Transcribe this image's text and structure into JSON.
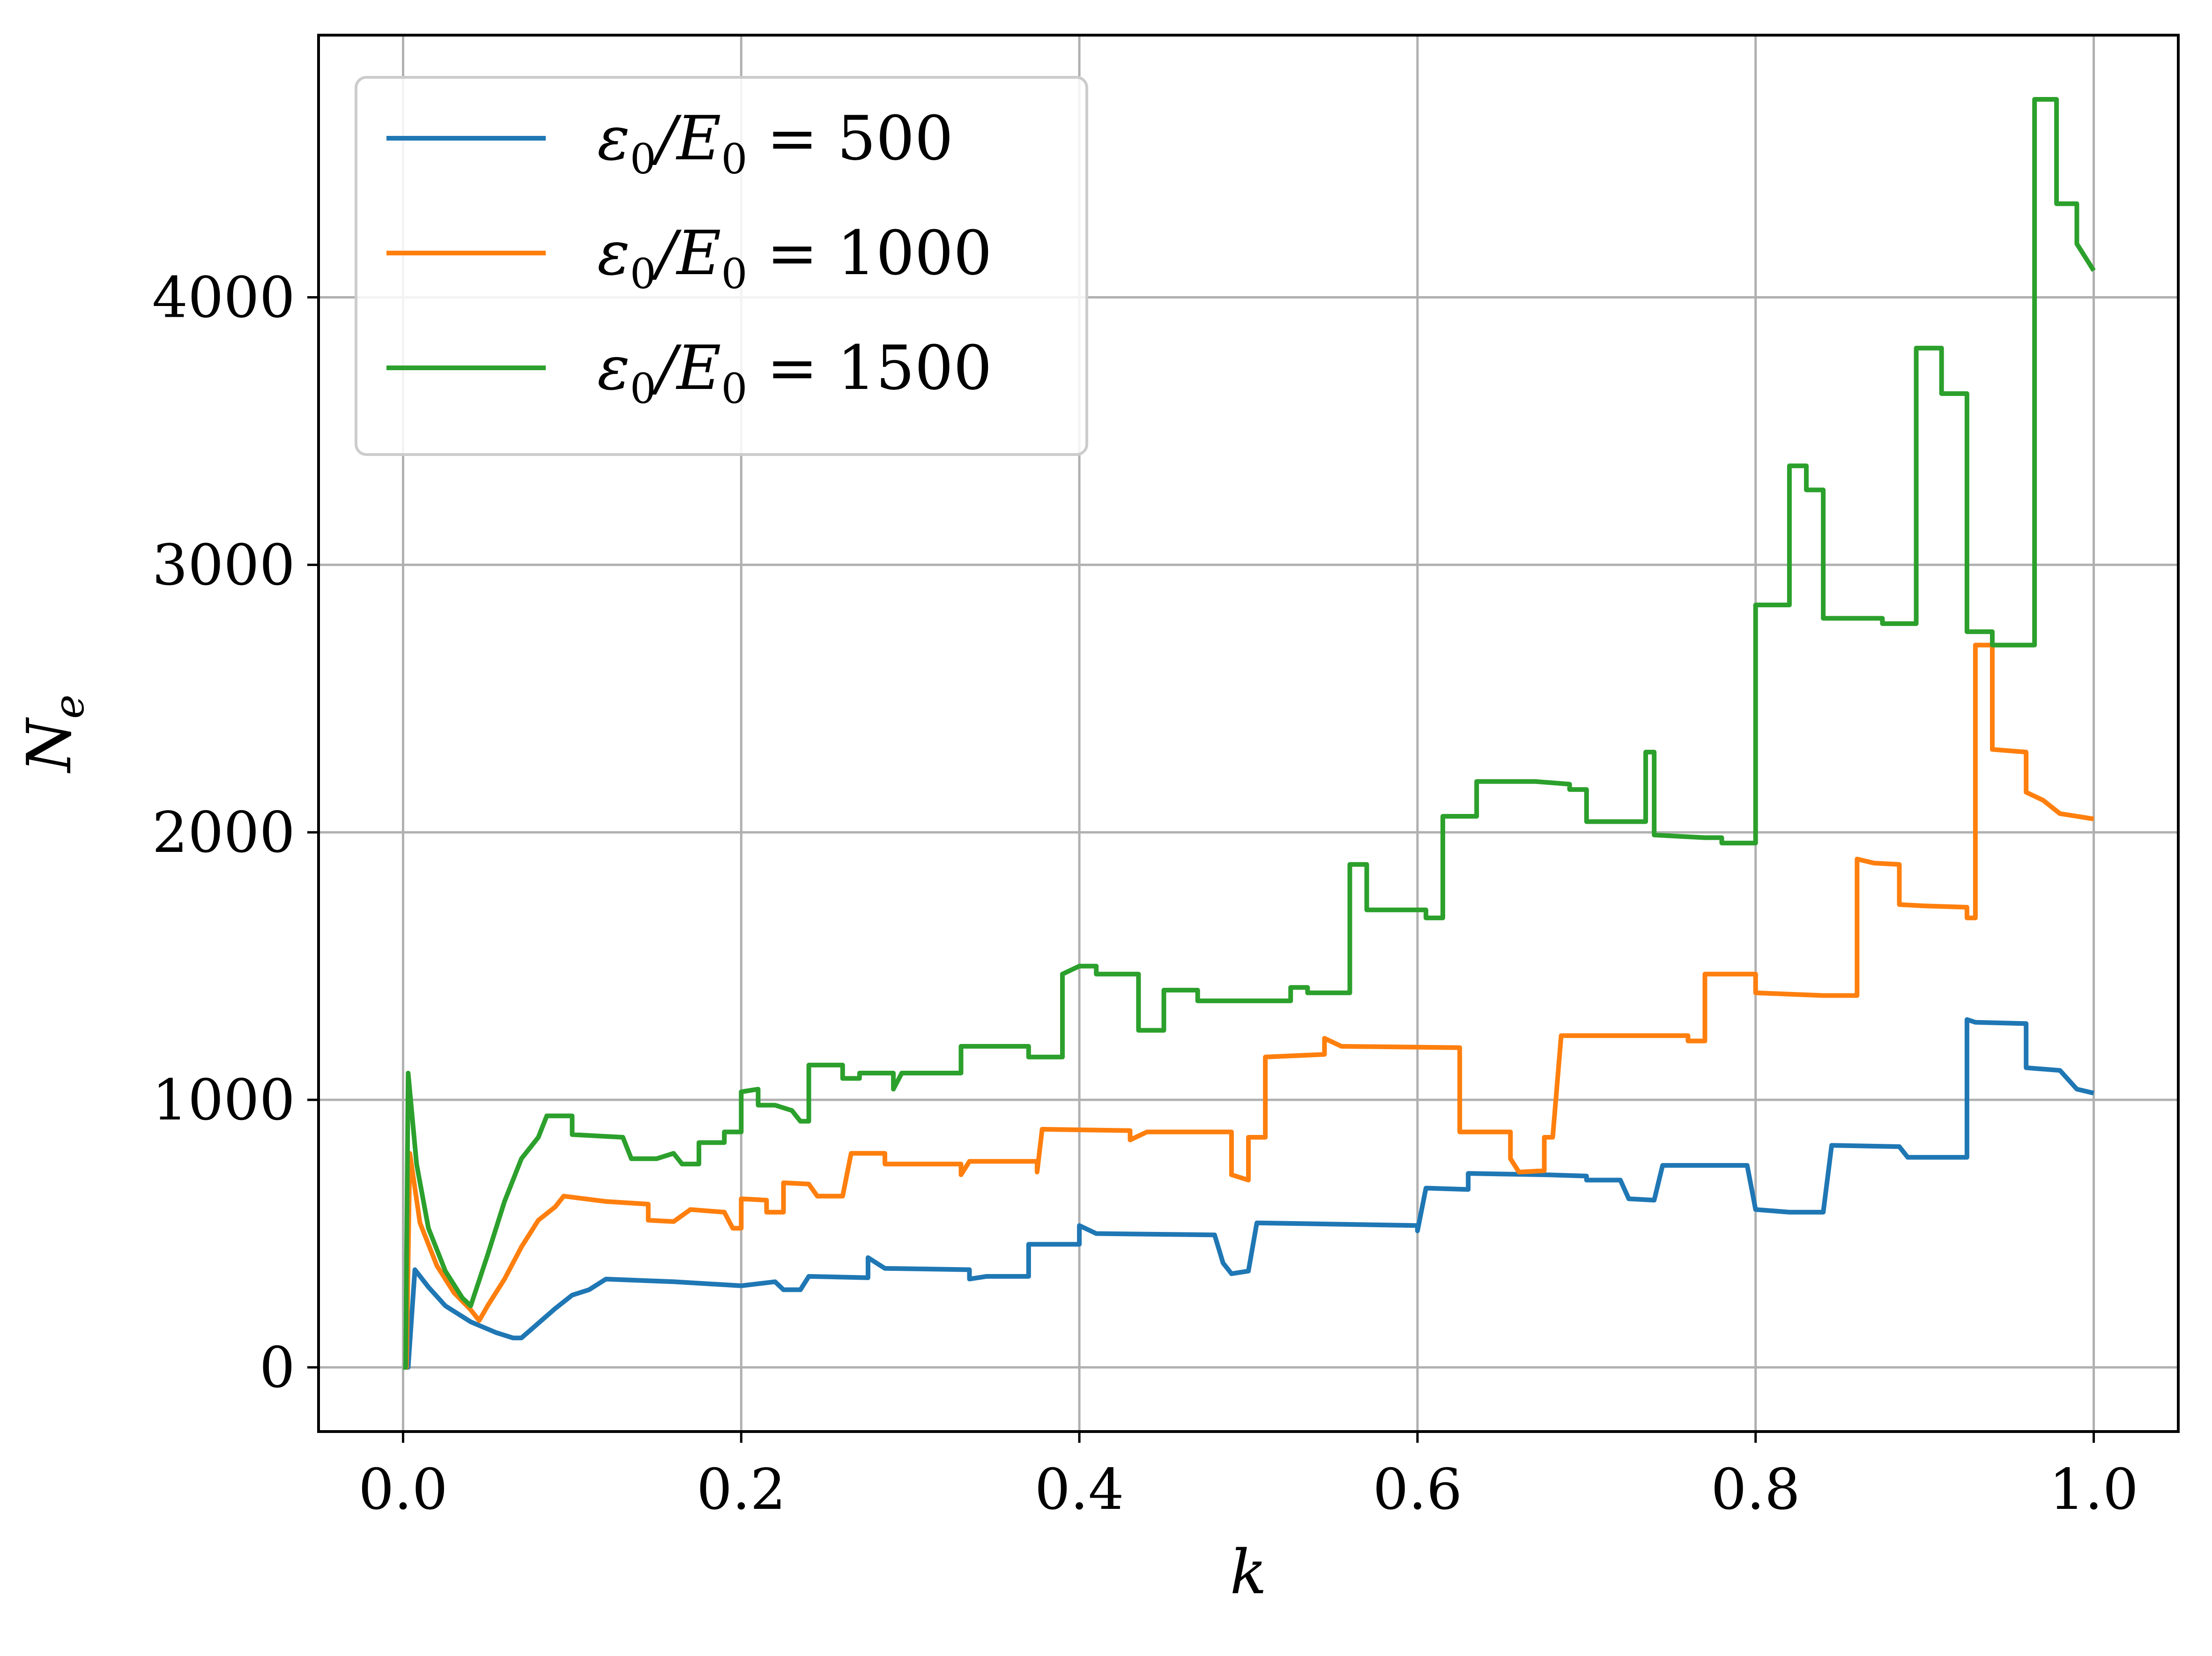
{
  "chart_data": {
    "type": "line",
    "xlabel": "k",
    "ylabel": "N",
    "ylabel_sub": "e",
    "xlim": [
      -0.05,
      1.05
    ],
    "ylim": [
      -240,
      4980
    ],
    "xticks": [
      0.0,
      0.2,
      0.4,
      0.6,
      0.8,
      1.0
    ],
    "xtick_labels": [
      "0.0",
      "0.2",
      "0.4",
      "0.6",
      "0.8",
      "1.0"
    ],
    "yticks": [
      0,
      1000,
      2000,
      3000,
      4000
    ],
    "ytick_labels": [
      "0",
      "1000",
      "2000",
      "3000",
      "4000"
    ],
    "grid": true,
    "legend_position": "top-left",
    "series": [
      {
        "name": "ε0/E0 = 500",
        "legend": {
          "sym": "ε",
          "sub1": "0",
          "slash": "/E",
          "sub2": "0",
          "eq": " = 500"
        },
        "color": "#1f77b4",
        "points": [
          [
            0.0,
            0
          ],
          [
            0.003,
            0
          ],
          [
            0.007,
            365
          ],
          [
            0.015,
            300
          ],
          [
            0.025,
            230
          ],
          [
            0.04,
            170
          ],
          [
            0.055,
            130
          ],
          [
            0.065,
            110
          ],
          [
            0.07,
            110
          ],
          [
            0.08,
            165
          ],
          [
            0.09,
            220
          ],
          [
            0.1,
            270
          ],
          [
            0.11,
            290
          ],
          [
            0.12,
            330
          ],
          [
            0.16,
            320
          ],
          [
            0.2,
            305
          ],
          [
            0.22,
            320
          ],
          [
            0.225,
            290
          ],
          [
            0.235,
            290
          ],
          [
            0.24,
            340
          ],
          [
            0.275,
            335
          ],
          [
            0.275,
            410
          ],
          [
            0.285,
            370
          ],
          [
            0.335,
            365
          ],
          [
            0.335,
            330
          ],
          [
            0.345,
            340
          ],
          [
            0.37,
            340
          ],
          [
            0.37,
            460
          ],
          [
            0.4,
            460
          ],
          [
            0.4,
            530
          ],
          [
            0.41,
            500
          ],
          [
            0.48,
            495
          ],
          [
            0.485,
            390
          ],
          [
            0.49,
            350
          ],
          [
            0.5,
            360
          ],
          [
            0.505,
            540
          ],
          [
            0.6,
            530
          ],
          [
            0.6,
            510
          ],
          [
            0.605,
            670
          ],
          [
            0.63,
            665
          ],
          [
            0.63,
            725
          ],
          [
            0.675,
            720
          ],
          [
            0.7,
            715
          ],
          [
            0.7,
            700
          ],
          [
            0.72,
            700
          ],
          [
            0.725,
            630
          ],
          [
            0.74,
            625
          ],
          [
            0.745,
            755
          ],
          [
            0.795,
            755
          ],
          [
            0.8,
            590
          ],
          [
            0.81,
            585
          ],
          [
            0.82,
            580
          ],
          [
            0.84,
            580
          ],
          [
            0.845,
            830
          ],
          [
            0.885,
            825
          ],
          [
            0.89,
            785
          ],
          [
            0.925,
            785
          ],
          [
            0.925,
            1300
          ],
          [
            0.93,
            1290
          ],
          [
            0.96,
            1285
          ],
          [
            0.96,
            1120
          ],
          [
            0.98,
            1110
          ],
          [
            0.99,
            1040
          ],
          [
            1.0,
            1025
          ]
        ]
      },
      {
        "name": "ε0/E0 = 1000",
        "legend": {
          "sym": "ε",
          "sub1": "0",
          "slash": "/E",
          "sub2": "0",
          "eq": " = 1000"
        },
        "color": "#ff7f0e",
        "points": [
          [
            0.0,
            0
          ],
          [
            0.002,
            0
          ],
          [
            0.004,
            800
          ],
          [
            0.01,
            540
          ],
          [
            0.02,
            380
          ],
          [
            0.03,
            280
          ],
          [
            0.04,
            215
          ],
          [
            0.045,
            175
          ],
          [
            0.05,
            230
          ],
          [
            0.06,
            330
          ],
          [
            0.07,
            450
          ],
          [
            0.08,
            550
          ],
          [
            0.09,
            600
          ],
          [
            0.095,
            640
          ],
          [
            0.12,
            620
          ],
          [
            0.145,
            610
          ],
          [
            0.145,
            550
          ],
          [
            0.16,
            545
          ],
          [
            0.17,
            590
          ],
          [
            0.19,
            580
          ],
          [
            0.195,
            520
          ],
          [
            0.2,
            520
          ],
          [
            0.2,
            630
          ],
          [
            0.215,
            625
          ],
          [
            0.215,
            580
          ],
          [
            0.225,
            580
          ],
          [
            0.225,
            690
          ],
          [
            0.24,
            685
          ],
          [
            0.245,
            640
          ],
          [
            0.26,
            640
          ],
          [
            0.265,
            800
          ],
          [
            0.285,
            800
          ],
          [
            0.285,
            760
          ],
          [
            0.33,
            760
          ],
          [
            0.33,
            720
          ],
          [
            0.335,
            770
          ],
          [
            0.375,
            770
          ],
          [
            0.375,
            730
          ],
          [
            0.378,
            890
          ],
          [
            0.43,
            885
          ],
          [
            0.43,
            850
          ],
          [
            0.44,
            880
          ],
          [
            0.49,
            880
          ],
          [
            0.49,
            720
          ],
          [
            0.5,
            700
          ],
          [
            0.5,
            860
          ],
          [
            0.51,
            860
          ],
          [
            0.51,
            1160
          ],
          [
            0.545,
            1170
          ],
          [
            0.545,
            1230
          ],
          [
            0.555,
            1200
          ],
          [
            0.625,
            1195
          ],
          [
            0.625,
            880
          ],
          [
            0.655,
            880
          ],
          [
            0.655,
            780
          ],
          [
            0.66,
            730
          ],
          [
            0.675,
            735
          ],
          [
            0.675,
            860
          ],
          [
            0.68,
            860
          ],
          [
            0.685,
            1240
          ],
          [
            0.76,
            1240
          ],
          [
            0.76,
            1220
          ],
          [
            0.77,
            1220
          ],
          [
            0.77,
            1470
          ],
          [
            0.8,
            1470
          ],
          [
            0.8,
            1400
          ],
          [
            0.84,
            1390
          ],
          [
            0.84,
            1390
          ],
          [
            0.86,
            1390
          ],
          [
            0.86,
            1900
          ],
          [
            0.87,
            1885
          ],
          [
            0.885,
            1880
          ],
          [
            0.885,
            1730
          ],
          [
            0.9,
            1725
          ],
          [
            0.925,
            1720
          ],
          [
            0.925,
            1680
          ],
          [
            0.93,
            1680
          ],
          [
            0.93,
            2700
          ],
          [
            0.94,
            2700
          ],
          [
            0.94,
            2310
          ],
          [
            0.96,
            2300
          ],
          [
            0.96,
            2150
          ],
          [
            0.97,
            2120
          ],
          [
            0.98,
            2070
          ],
          [
            1.0,
            2050
          ]
        ]
      },
      {
        "name": "ε0/E0 = 1500",
        "legend": {
          "sym": "ε",
          "sub1": "0",
          "slash": "/E",
          "sub2": "0",
          "eq": " = 1500"
        },
        "color": "#2ca02c",
        "points": [
          [
            0.0,
            0
          ],
          [
            0.0015,
            0
          ],
          [
            0.003,
            1100
          ],
          [
            0.008,
            760
          ],
          [
            0.015,
            520
          ],
          [
            0.025,
            360
          ],
          [
            0.035,
            260
          ],
          [
            0.04,
            230
          ],
          [
            0.05,
            420
          ],
          [
            0.06,
            620
          ],
          [
            0.07,
            780
          ],
          [
            0.08,
            860
          ],
          [
            0.085,
            940
          ],
          [
            0.1,
            940
          ],
          [
            0.1,
            870
          ],
          [
            0.13,
            860
          ],
          [
            0.135,
            780
          ],
          [
            0.15,
            780
          ],
          [
            0.16,
            800
          ],
          [
            0.165,
            760
          ],
          [
            0.175,
            760
          ],
          [
            0.175,
            840
          ],
          [
            0.19,
            840
          ],
          [
            0.19,
            880
          ],
          [
            0.2,
            880
          ],
          [
            0.2,
            1030
          ],
          [
            0.21,
            1040
          ],
          [
            0.21,
            980
          ],
          [
            0.22,
            980
          ],
          [
            0.23,
            960
          ],
          [
            0.235,
            920
          ],
          [
            0.24,
            920
          ],
          [
            0.24,
            1130
          ],
          [
            0.26,
            1130
          ],
          [
            0.26,
            1080
          ],
          [
            0.27,
            1080
          ],
          [
            0.27,
            1100
          ],
          [
            0.29,
            1100
          ],
          [
            0.29,
            1040
          ],
          [
            0.295,
            1100
          ],
          [
            0.32,
            1100
          ],
          [
            0.33,
            1100
          ],
          [
            0.33,
            1200
          ],
          [
            0.37,
            1200
          ],
          [
            0.37,
            1160
          ],
          [
            0.39,
            1160
          ],
          [
            0.39,
            1470
          ],
          [
            0.4,
            1500
          ],
          [
            0.41,
            1500
          ],
          [
            0.41,
            1470
          ],
          [
            0.435,
            1470
          ],
          [
            0.435,
            1260
          ],
          [
            0.45,
            1260
          ],
          [
            0.45,
            1410
          ],
          [
            0.47,
            1410
          ],
          [
            0.47,
            1370
          ],
          [
            0.525,
            1370
          ],
          [
            0.525,
            1420
          ],
          [
            0.535,
            1420
          ],
          [
            0.535,
            1400
          ],
          [
            0.56,
            1400
          ],
          [
            0.56,
            1880
          ],
          [
            0.57,
            1880
          ],
          [
            0.57,
            1710
          ],
          [
            0.605,
            1710
          ],
          [
            0.605,
            1680
          ],
          [
            0.615,
            1680
          ],
          [
            0.615,
            2060
          ],
          [
            0.635,
            2060
          ],
          [
            0.635,
            2190
          ],
          [
            0.67,
            2190
          ],
          [
            0.69,
            2180
          ],
          [
            0.69,
            2160
          ],
          [
            0.7,
            2160
          ],
          [
            0.7,
            2040
          ],
          [
            0.735,
            2040
          ],
          [
            0.735,
            2300
          ],
          [
            0.74,
            2300
          ],
          [
            0.74,
            1990
          ],
          [
            0.77,
            1980
          ],
          [
            0.78,
            1980
          ],
          [
            0.78,
            1960
          ],
          [
            0.8,
            1960
          ],
          [
            0.8,
            2850
          ],
          [
            0.82,
            2850
          ],
          [
            0.82,
            3370
          ],
          [
            0.83,
            3370
          ],
          [
            0.83,
            3280
          ],
          [
            0.84,
            3280
          ],
          [
            0.84,
            2800
          ],
          [
            0.875,
            2800
          ],
          [
            0.875,
            2780
          ],
          [
            0.895,
            2780
          ],
          [
            0.895,
            3810
          ],
          [
            0.91,
            3810
          ],
          [
            0.91,
            3640
          ],
          [
            0.925,
            3640
          ],
          [
            0.925,
            2750
          ],
          [
            0.94,
            2750
          ],
          [
            0.94,
            2700
          ],
          [
            0.965,
            2700
          ],
          [
            0.965,
            4740
          ],
          [
            0.978,
            4740
          ],
          [
            0.978,
            4350
          ],
          [
            0.99,
            4350
          ],
          [
            0.99,
            4200
          ],
          [
            0.995,
            4150
          ],
          [
            1.0,
            4100
          ]
        ]
      }
    ]
  }
}
